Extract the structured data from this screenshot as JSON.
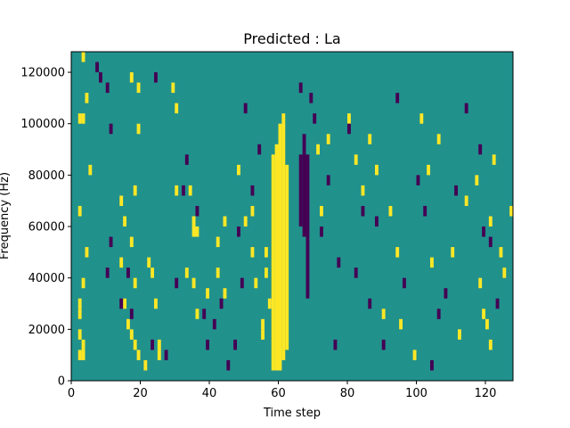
{
  "chart_data": {
    "type": "heatmap",
    "title": "Predicted : La",
    "xlabel": "Time step",
    "ylabel": "Frequency (Hz)",
    "xlim": [
      0,
      128
    ],
    "ylim": [
      0,
      128000
    ],
    "x_ticks": [
      0,
      20,
      40,
      60,
      80,
      100,
      120
    ],
    "x_tick_labels": [
      "0",
      "20",
      "40",
      "60",
      "80",
      "100",
      "120"
    ],
    "y_ticks": [
      0,
      20000,
      40000,
      60000,
      80000,
      100000,
      120000
    ],
    "y_tick_labels": [
      "0",
      "20000",
      "40000",
      "60000",
      "80000",
      "100000",
      "120000"
    ],
    "grid": false,
    "rows": 32,
    "cols": 128,
    "colors": {
      "background": "#21918c",
      "high": "#fde725",
      "low": "#440154"
    },
    "high_columns": [
      {
        "x": 58,
        "y_range": [
          4000,
          88000
        ]
      },
      {
        "x": 59,
        "y_range": [
          4000,
          92000
        ]
      },
      {
        "x": 60,
        "y_range": [
          4000,
          100000
        ]
      },
      {
        "x": 61,
        "y_range": [
          8000,
          104000
        ]
      },
      {
        "x": 62,
        "y_range": [
          12000,
          84000
        ]
      }
    ],
    "low_columns": [
      {
        "x": 66,
        "y_range": [
          60000,
          88000
        ]
      },
      {
        "x": 67,
        "y_range": [
          56000,
          96000
        ]
      },
      {
        "x": 68,
        "y_range": [
          32000,
          88000
        ]
      }
    ],
    "high_cells": [
      [
        3,
        124000
      ],
      [
        4,
        108000
      ],
      [
        2,
        100000
      ],
      [
        3,
        100000
      ],
      [
        5,
        80000
      ],
      [
        2,
        64000
      ],
      [
        4,
        48000
      ],
      [
        3,
        36000
      ],
      [
        2,
        28000
      ],
      [
        2,
        24000
      ],
      [
        2,
        16000
      ],
      [
        3,
        12000
      ],
      [
        2,
        8000
      ],
      [
        3,
        8000
      ],
      [
        17,
        116000
      ],
      [
        19,
        112000
      ],
      [
        19,
        96000
      ],
      [
        18,
        72000
      ],
      [
        14,
        68000
      ],
      [
        15,
        60000
      ],
      [
        17,
        52000
      ],
      [
        14,
        44000
      ],
      [
        18,
        36000
      ],
      [
        15,
        28000
      ],
      [
        16,
        20000
      ],
      [
        17,
        16000
      ],
      [
        18,
        12000
      ],
      [
        19,
        8000
      ],
      [
        22,
        44000
      ],
      [
        23,
        40000
      ],
      [
        24,
        28000
      ],
      [
        25,
        12000
      ],
      [
        25,
        8000
      ],
      [
        21,
        4000
      ],
      [
        29,
        112000
      ],
      [
        30,
        104000
      ],
      [
        30,
        72000
      ],
      [
        34,
        72000
      ],
      [
        35,
        60000
      ],
      [
        35,
        56000
      ],
      [
        36,
        56000
      ],
      [
        33,
        40000
      ],
      [
        35,
        36000
      ],
      [
        36,
        24000
      ],
      [
        39,
        32000
      ],
      [
        42,
        52000
      ],
      [
        42,
        40000
      ],
      [
        44,
        60000
      ],
      [
        44,
        32000
      ],
      [
        48,
        80000
      ],
      [
        50,
        60000
      ],
      [
        52,
        64000
      ],
      [
        52,
        48000
      ],
      [
        53,
        36000
      ],
      [
        55,
        20000
      ],
      [
        56,
        48000
      ],
      [
        56,
        40000
      ],
      [
        57,
        28000
      ],
      [
        55,
        16000
      ],
      [
        71,
        88000
      ],
      [
        72,
        64000
      ],
      [
        74,
        92000
      ],
      [
        80,
        100000
      ],
      [
        82,
        84000
      ],
      [
        84,
        72000
      ],
      [
        86,
        92000
      ],
      [
        88,
        80000
      ],
      [
        90,
        24000
      ],
      [
        92,
        64000
      ],
      [
        94,
        48000
      ],
      [
        95,
        20000
      ],
      [
        99,
        8000
      ],
      [
        101,
        100000
      ],
      [
        103,
        80000
      ],
      [
        104,
        44000
      ],
      [
        106,
        92000
      ],
      [
        110,
        48000
      ],
      [
        112,
        16000
      ],
      [
        114,
        68000
      ],
      [
        117,
        76000
      ],
      [
        118,
        36000
      ],
      [
        119,
        24000
      ],
      [
        120,
        20000
      ],
      [
        121,
        60000
      ],
      [
        121,
        12000
      ],
      [
        122,
        84000
      ],
      [
        124,
        48000
      ],
      [
        125,
        40000
      ],
      [
        127,
        64000
      ]
    ],
    "low_cells": [
      [
        7,
        120000
      ],
      [
        8,
        116000
      ],
      [
        10,
        112000
      ],
      [
        11,
        96000
      ],
      [
        10,
        40000
      ],
      [
        11,
        52000
      ],
      [
        14,
        28000
      ],
      [
        16,
        40000
      ],
      [
        17,
        24000
      ],
      [
        23,
        12000
      ],
      [
        24,
        116000
      ],
      [
        27,
        8000
      ],
      [
        30,
        36000
      ],
      [
        32,
        72000
      ],
      [
        33,
        84000
      ],
      [
        36,
        64000
      ],
      [
        38,
        24000
      ],
      [
        39,
        12000
      ],
      [
        41,
        20000
      ],
      [
        43,
        28000
      ],
      [
        45,
        4000
      ],
      [
        47,
        12000
      ],
      [
        48,
        56000
      ],
      [
        49,
        36000
      ],
      [
        50,
        104000
      ],
      [
        52,
        72000
      ],
      [
        54,
        88000
      ],
      [
        66,
        112000
      ],
      [
        69,
        108000
      ],
      [
        70,
        100000
      ],
      [
        72,
        56000
      ],
      [
        74,
        76000
      ],
      [
        76,
        12000
      ],
      [
        77,
        44000
      ],
      [
        80,
        96000
      ],
      [
        82,
        40000
      ],
      [
        84,
        64000
      ],
      [
        86,
        28000
      ],
      [
        88,
        60000
      ],
      [
        90,
        12000
      ],
      [
        94,
        108000
      ],
      [
        96,
        36000
      ],
      [
        100,
        76000
      ],
      [
        102,
        64000
      ],
      [
        104,
        4000
      ],
      [
        106,
        24000
      ],
      [
        108,
        32000
      ],
      [
        111,
        72000
      ],
      [
        114,
        104000
      ],
      [
        118,
        88000
      ],
      [
        119,
        56000
      ],
      [
        121,
        52000
      ],
      [
        123,
        28000
      ]
    ]
  }
}
